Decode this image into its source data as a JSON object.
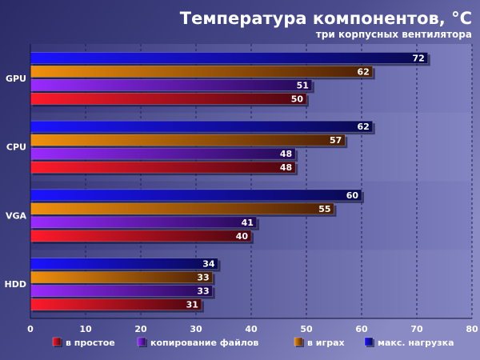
{
  "chart_data": {
    "type": "bar",
    "orientation": "horizontal",
    "title": "Температура компонентов, °C",
    "subtitle": "три корпусных вентилятора",
    "categories": [
      "GPU",
      "CPU",
      "VGA",
      "HDD"
    ],
    "series": [
      {
        "name": "макс. нагрузка",
        "color": "#1a12e8",
        "values": [
          72,
          62,
          60,
          34
        ]
      },
      {
        "name": "в играх",
        "color": "#e0820e",
        "values": [
          62,
          57,
          55,
          33
        ]
      },
      {
        "name": "копирование файлов",
        "color": "#8a22f0",
        "values": [
          51,
          48,
          41,
          33
        ]
      },
      {
        "name": "в простое",
        "color": "#e8122a",
        "values": [
          50,
          48,
          40,
          31
        ]
      }
    ],
    "legend_order": [
      "в простое",
      "копирование файлов",
      "в играх",
      "макс. нагрузка"
    ],
    "xlim": [
      0,
      80
    ],
    "xticks": [
      0,
      10,
      20,
      30,
      40,
      50,
      60,
      70,
      80
    ],
    "grid": true,
    "legend_position": "bottom"
  }
}
